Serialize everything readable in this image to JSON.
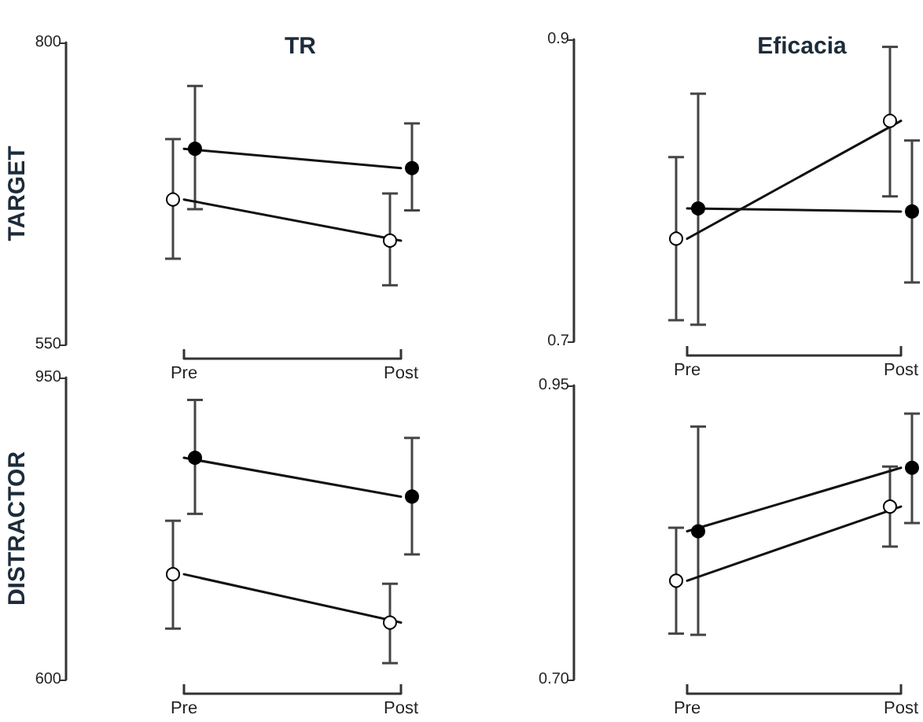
{
  "chart_data": [
    {
      "type": "line",
      "title": "TR",
      "ylabel": "TARGET",
      "categories": [
        "Pre",
        "Post"
      ],
      "ylim": [
        550,
        800
      ],
      "yticks": [
        550,
        800
      ],
      "marker": "circle",
      "line_style": "solid",
      "series": [
        {
          "color": "#000000",
          "values": [
            712,
            696
          ],
          "errors": [
            [
              662,
              764
            ],
            [
              661,
              733
            ]
          ]
        },
        {
          "color": "#ffffff",
          "values": [
            670,
            636
          ],
          "errors": [
            [
              621,
              720
            ],
            [
              599,
              675
            ]
          ]
        }
      ]
    },
    {
      "type": "line",
      "title": "Eficacia",
      "categories": [
        "Pre",
        "Post"
      ],
      "ylim": [
        0.7,
        0.9
      ],
      "yticks": [
        0.7,
        0.9
      ],
      "marker": "circle",
      "line_style": "solid",
      "series": [
        {
          "color": "#000000",
          "values": [
            0.788,
            0.786
          ],
          "errors": [
            [
              0.711,
              0.864
            ],
            [
              0.739,
              0.833
            ]
          ]
        },
        {
          "color": "#ffffff",
          "values": [
            0.768,
            0.846
          ],
          "errors": [
            [
              0.714,
              0.822
            ],
            [
              0.796,
              0.895
            ]
          ]
        }
      ]
    },
    {
      "type": "line",
      "ylabel": "DISTRACTOR",
      "categories": [
        "Pre",
        "Post"
      ],
      "ylim": [
        600,
        950
      ],
      "yticks": [
        600,
        950
      ],
      "marker": "circle",
      "line_style": "solid",
      "series": [
        {
          "color": "#000000",
          "values": [
            857,
            812
          ],
          "errors": [
            [
              792,
              924
            ],
            [
              745,
              880
            ]
          ]
        },
        {
          "color": "#ffffff",
          "values": [
            722,
            666
          ],
          "errors": [
            [
              659,
              784
            ],
            [
              619,
              711
            ]
          ]
        }
      ]
    },
    {
      "type": "line",
      "categories": [
        "Pre",
        "Post"
      ],
      "ylim": [
        0.7,
        0.95
      ],
      "yticks": [
        {
          "value": 0.7,
          "label": "0.70"
        },
        0.95
      ],
      "marker": "circle",
      "line_style": "solid",
      "series": [
        {
          "color": "#000000",
          "values": [
            0.826,
            0.88
          ],
          "errors": [
            [
              0.738,
              0.915
            ],
            [
              0.833,
              0.926
            ]
          ]
        },
        {
          "color": "#ffffff",
          "values": [
            0.784,
            0.847
          ],
          "errors": [
            [
              0.739,
              0.829
            ],
            [
              0.813,
              0.881
            ]
          ]
        }
      ]
    }
  ]
}
